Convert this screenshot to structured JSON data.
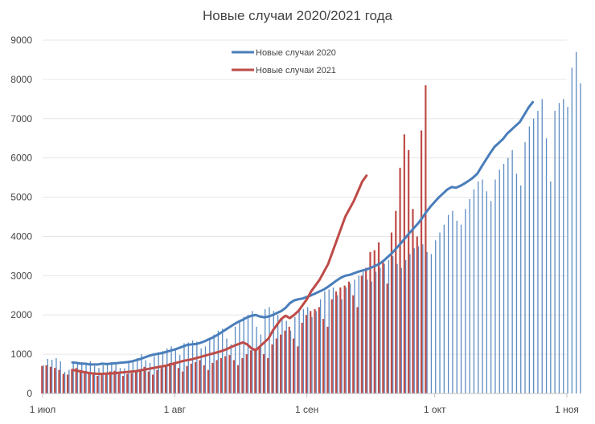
{
  "chart_data": {
    "type": "bar+line",
    "title": "Новые случаи 2020/2021 года",
    "ylim": [
      0,
      9000
    ],
    "yticks": [
      0,
      1000,
      2000,
      3000,
      4000,
      5000,
      6000,
      7000,
      8000,
      9000
    ],
    "xlim_days": [
      0,
      123
    ],
    "xticks": [
      {
        "day": 0,
        "label": "1 июл"
      },
      {
        "day": 31,
        "label": "1 авг"
      },
      {
        "day": 62,
        "label": "1 сен"
      },
      {
        "day": 92,
        "label": "1 окт"
      },
      {
        "day": 123,
        "label": "1 ноя"
      }
    ],
    "legend": {
      "position": "top-center"
    },
    "series": [
      {
        "name": "Новые случаи 2020",
        "color": "#4a7ebb",
        "daily_start_day": 0,
        "daily": [
          720,
          880,
          860,
          900,
          820,
          550,
          600,
          820,
          780,
          800,
          750,
          820,
          700,
          650,
          720,
          750,
          800,
          780,
          650,
          640,
          800,
          820,
          900,
          1000,
          850,
          780,
          950,
          1050,
          1080,
          1150,
          1200,
          1100,
          980,
          1280,
          1300,
          1350,
          1320,
          1150,
          1200,
          1400,
          1500,
          1600,
          1650,
          1400,
          1250,
          1700,
          1850,
          1950,
          2000,
          2100,
          1700,
          1500,
          2150,
          2200,
          2100,
          2000,
          1900,
          1850,
          1600,
          1950,
          2100,
          2150,
          2200,
          1950,
          2100,
          2400,
          2600,
          2650,
          2700,
          2500,
          2400,
          2700,
          2800,
          2900,
          3000,
          3100,
          2900,
          2850,
          3100,
          3200,
          3300,
          3400,
          3500,
          3300,
          3200,
          3400,
          3550,
          3700,
          3750,
          3800,
          3600,
          3550,
          3900,
          4100,
          4300,
          4550,
          4650,
          4400,
          4300,
          4700,
          4950,
          5200,
          5400,
          5450,
          5150,
          4900,
          5450,
          5700,
          5850,
          6000,
          6200,
          5600,
          5300,
          6400,
          6800,
          7000,
          7200,
          7500,
          6500,
          5400,
          7200,
          7400,
          7500,
          7300,
          8300,
          8700,
          7900
        ],
        "avg7_start_day": 7,
        "avg7": [
          790,
          780,
          760,
          760,
          740,
          740,
          740,
          760,
          750,
          760,
          770,
          780,
          790,
          800,
          820,
          850,
          880,
          920,
          960,
          990,
          1010,
          1030,
          1060,
          1090,
          1120,
          1160,
          1200,
          1240,
          1250,
          1260,
          1290,
          1330,
          1380,
          1430,
          1490,
          1560,
          1630,
          1700,
          1770,
          1830,
          1880,
          1940,
          1980,
          2000,
          1960,
          1940,
          1960,
          2000,
          2050,
          2100,
          2180,
          2300,
          2370,
          2400,
          2420,
          2460,
          2500,
          2550,
          2600,
          2650,
          2720,
          2800,
          2880,
          2950,
          3000,
          3020,
          3060,
          3100,
          3130,
          3160,
          3200,
          3250,
          3300,
          3380,
          3480,
          3580,
          3700,
          3820,
          3950,
          4080,
          4200,
          4320,
          4460,
          4620,
          4760,
          4880,
          5000,
          5100,
          5200,
          5260,
          5240,
          5290,
          5350,
          5420,
          5500,
          5600,
          5780,
          5950,
          6120,
          6280,
          6380,
          6480,
          6620,
          6720,
          6820,
          6920,
          7100,
          7280,
          7420
        ]
      },
      {
        "name": "Новые случаи 2021",
        "color": "#be4b48",
        "daily_start_day": 0,
        "daily": [
          700,
          720,
          680,
          650,
          600,
          500,
          480,
          620,
          650,
          600,
          560,
          520,
          480,
          450,
          500,
          520,
          560,
          580,
          500,
          450,
          500,
          520,
          580,
          620,
          680,
          560,
          480,
          600,
          650,
          720,
          780,
          800,
          650,
          560,
          700,
          760,
          800,
          850,
          720,
          600,
          780,
          850,
          900,
          950,
          980,
          850,
          720,
          900,
          1000,
          1100,
          1150,
          1200,
          1000,
          900,
          1250,
          1400,
          1500,
          1600,
          1700,
          1400,
          1200,
          1800,
          2000,
          2100,
          2150,
          2200,
          1900,
          1700,
          2400,
          2600,
          2700,
          2750,
          2850,
          2500,
          2200,
          3000,
          3200,
          3600,
          3650,
          3850,
          3400,
          2800,
          4100,
          4650,
          5750,
          6600,
          6200,
          4700,
          4000,
          6700,
          7850
        ],
        "avg7_start_day": 7,
        "avg7": [
          600,
          580,
          560,
          540,
          520,
          510,
          500,
          500,
          510,
          510,
          520,
          530,
          540,
          550,
          560,
          570,
          590,
          610,
          630,
          650,
          670,
          690,
          710,
          740,
          770,
          800,
          830,
          850,
          870,
          900,
          930,
          960,
          990,
          1020,
          1050,
          1080,
          1120,
          1170,
          1220,
          1260,
          1300,
          1250,
          1150,
          1100,
          1200,
          1300,
          1400,
          1600,
          1750,
          1900,
          1980,
          1920,
          2000,
          2100,
          2250,
          2400,
          2600,
          2750,
          2900,
          3100,
          3300,
          3600,
          3900,
          4200,
          4500,
          4700,
          4900,
          5150,
          5400,
          5550
        ]
      }
    ]
  }
}
